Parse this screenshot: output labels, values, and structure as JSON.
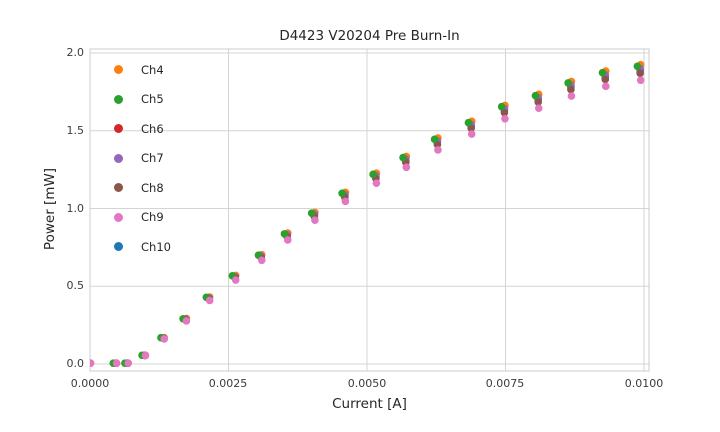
{
  "title": "D4423 V20204 Pre Burn-In",
  "chart_data": {
    "type": "scatter",
    "title": "D4423 V20204 Pre Burn-In",
    "xlabel": "Current [A]",
    "ylabel": "Power [mW]",
    "xlim": [
      0.0,
      0.01009
    ],
    "ylim": [
      -0.045,
      2.026
    ],
    "grid": true,
    "legend_position": "upper left",
    "x_ticks": [
      0.0,
      0.0025,
      0.005,
      0.0075,
      0.01
    ],
    "x_tick_labels": [
      "0.0000",
      "0.0025",
      "0.0050",
      "0.0075",
      "0.0100"
    ],
    "y_ticks": [
      0.0,
      0.5,
      1.0,
      1.5,
      2.0
    ],
    "y_tick_labels": [
      "0.0",
      "0.5",
      "1.0",
      "1.5",
      "2.0"
    ],
    "x": [
      0.0,
      0.00047,
      0.00068,
      0.00099,
      0.00133,
      0.00173,
      0.00215,
      0.00262,
      0.00309,
      0.00356,
      0.00405,
      0.0046,
      0.00516,
      0.0057,
      0.00627,
      0.00688,
      0.00748,
      0.00809,
      0.00868,
      0.0093,
      0.00993
    ],
    "series": [
      {
        "name": "Ch4",
        "color": "#ff7f0e",
        "x_offset": 1e-05,
        "values": [
          0.005,
          0.005,
          0.005,
          0.056,
          0.169,
          0.293,
          0.431,
          0.57,
          0.703,
          0.842,
          0.975,
          1.104,
          1.227,
          1.335,
          1.453,
          1.561,
          1.663,
          1.735,
          1.817,
          1.884,
          1.925
        ]
      },
      {
        "name": "Ch5",
        "color": "#2ca02c",
        "x_offset": -5e-05,
        "values": [
          0.005,
          0.005,
          0.005,
          0.056,
          0.169,
          0.291,
          0.429,
          0.567,
          0.7,
          0.837,
          0.97,
          1.098,
          1.22,
          1.328,
          1.445,
          1.552,
          1.655,
          1.726,
          1.808,
          1.874,
          1.915
        ]
      },
      {
        "name": "Ch6",
        "color": "#d62728",
        "x_offset": 0.0,
        "values": [
          0.005,
          0.005,
          0.005,
          0.056,
          0.167,
          0.288,
          0.424,
          0.561,
          0.692,
          0.829,
          0.96,
          1.086,
          1.208,
          1.314,
          1.43,
          1.536,
          1.637,
          1.708,
          1.789,
          1.855,
          1.895
        ]
      },
      {
        "name": "Ch7",
        "color": "#9467bd",
        "x_offset": 0.0,
        "values": [
          0.005,
          0.005,
          0.005,
          0.056,
          0.167,
          0.289,
          0.426,
          0.562,
          0.694,
          0.831,
          0.963,
          1.089,
          1.211,
          1.317,
          1.434,
          1.54,
          1.642,
          1.713,
          1.794,
          1.859,
          1.9
        ]
      },
      {
        "name": "Ch8",
        "color": "#8c564b",
        "x_offset": 0.0,
        "values": [
          0.005,
          0.005,
          0.005,
          0.055,
          0.165,
          0.284,
          0.419,
          0.554,
          0.683,
          0.818,
          0.947,
          1.072,
          1.192,
          1.297,
          1.411,
          1.516,
          1.616,
          1.685,
          1.765,
          1.83,
          1.87
        ]
      },
      {
        "name": "Ch9",
        "color": "#e377c2",
        "x_offset": 1e-05,
        "values": [
          0.005,
          0.005,
          0.005,
          0.054,
          0.161,
          0.277,
          0.409,
          0.54,
          0.667,
          0.798,
          0.925,
          1.046,
          1.163,
          1.265,
          1.377,
          1.479,
          1.577,
          1.645,
          1.723,
          1.786,
          1.825
        ]
      },
      {
        "name": "Ch10",
        "color": "#1f77b4",
        "x_offset": 0.0,
        "values": [
          0.005,
          0.005,
          0.005,
          0.055,
          0.166,
          0.286,
          0.422,
          0.558,
          0.689,
          0.824,
          0.955,
          1.081,
          1.201,
          1.307,
          1.423,
          1.528,
          1.629,
          1.699,
          1.779,
          1.845,
          1.885
        ]
      }
    ],
    "draw_order": [
      "Ch4",
      "Ch6",
      "Ch10",
      "Ch7",
      "Ch8",
      "Ch5",
      "Ch9"
    ],
    "marker_radius_px": 3.8,
    "colors": {
      "grid": "#d4d4d4",
      "spine": "#cccccc",
      "text": "#262626"
    }
  }
}
